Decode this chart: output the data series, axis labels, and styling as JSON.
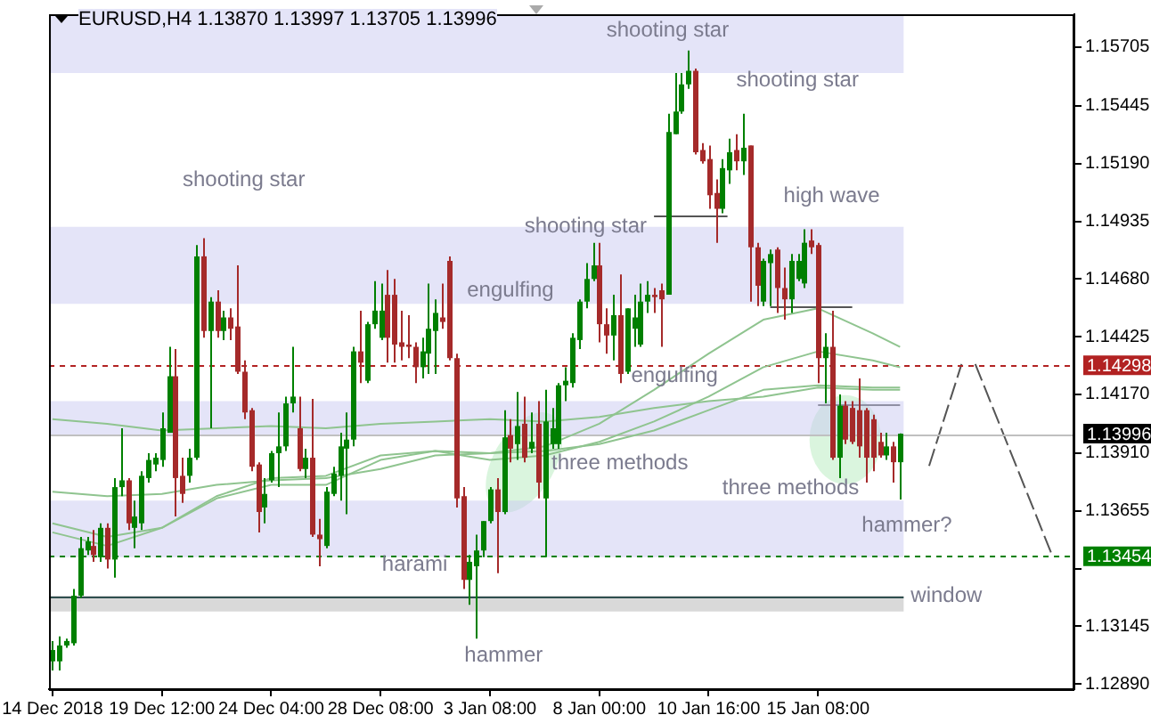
{
  "chart_data": {
    "type": "candlestick",
    "title": "EURUSD,H4 1.13870 1.13997 1.13705 1.13996",
    "categories": [
      "14 Dec 2018",
      null,
      null,
      null,
      null,
      null,
      null,
      null,
      null,
      null,
      null,
      null,
      null,
      null,
      null,
      null,
      "19 Dec 12:00",
      null,
      null,
      null,
      null,
      null,
      null,
      null,
      null,
      null,
      null,
      null,
      null,
      null,
      null,
      null,
      "24 Dec 04:00",
      null,
      null,
      null,
      null,
      null,
      null,
      null,
      null,
      null,
      null,
      null,
      null,
      null,
      null,
      null,
      "28 Dec 08:00",
      null,
      null,
      null,
      null,
      null,
      null,
      null,
      null,
      null,
      null,
      null,
      null,
      null,
      null,
      null,
      "3 Jan 08:00",
      null,
      null,
      null,
      null,
      null,
      null,
      null,
      null,
      null,
      null,
      null,
      null,
      null,
      null,
      null,
      "8 Jan 00:00",
      null,
      null,
      null,
      null,
      null,
      null,
      null,
      null,
      null,
      null,
      null,
      null,
      null,
      null,
      null,
      "10 Jan 16:00",
      null,
      null,
      null,
      null,
      null,
      null,
      null,
      null,
      null,
      null,
      null,
      null,
      null,
      null,
      null,
      "15 Jan 08:00",
      null,
      null,
      null,
      null,
      null,
      null,
      null,
      null,
      null,
      null,
      null,
      null,
      null,
      null,
      null,
      null,
      null,
      null,
      null,
      null,
      null,
      null,
      null,
      null,
      null,
      null,
      null,
      null,
      null,
      null,
      null,
      null,
      null,
      null,
      null,
      null,
      null
    ],
    "ohlc": [
      [
        1.1299,
        1.1308,
        1.1295,
        1.1304
      ],
      [
        1.1299,
        1.131,
        1.1295,
        1.1306
      ],
      [
        1.1306,
        1.1309,
        1.1305,
        1.1308
      ],
      [
        1.1307,
        1.1331,
        1.1306,
        1.1328
      ],
      [
        1.1328,
        1.1354,
        1.1327,
        1.1349
      ],
      [
        1.1348,
        1.1354,
        1.1346,
        1.1352
      ],
      [
        1.135,
        1.1357,
        1.1343,
        1.1346
      ],
      [
        1.1345,
        1.136,
        1.1343,
        1.1358
      ],
      [
        1.1358,
        1.136,
        1.134,
        1.1344
      ],
      [
        1.1344,
        1.138,
        1.1336,
        1.1376
      ],
      [
        1.1376,
        1.1402,
        1.1372,
        1.1379
      ],
      [
        1.1379,
        1.138,
        1.1357,
        1.136
      ],
      [
        1.1358,
        1.137,
        1.1349,
        1.1363
      ],
      [
        1.136,
        1.1383,
        1.1357,
        1.1381
      ],
      [
        1.138,
        1.1391,
        1.1378,
        1.1388
      ],
      [
        1.1386,
        1.1391,
        1.1383,
        1.1389
      ],
      [
        1.1388,
        1.1409,
        1.1385,
        1.1402
      ],
      [
        1.14,
        1.1438,
        1.14,
        1.1425
      ],
      [
        1.1425,
        1.1437,
        1.1363,
        1.138
      ],
      [
        1.1381,
        1.1389,
        1.1369,
        1.1373
      ],
      [
        1.1381,
        1.1393,
        1.1378,
        1.1389
      ],
      [
        1.1389,
        1.1483,
        1.1388,
        1.1478
      ],
      [
        1.1478,
        1.1486,
        1.1442,
        1.1445
      ],
      [
        1.1445,
        1.146,
        1.1402,
        1.1458
      ],
      [
        1.1458,
        1.1463,
        1.1442,
        1.1445
      ],
      [
        1.1445,
        1.1454,
        1.1441,
        1.1451
      ],
      [
        1.1451,
        1.1455,
        1.1441,
        1.1446
      ],
      [
        1.1447,
        1.1474,
        1.1426,
        1.1427
      ],
      [
        1.1427,
        1.1432,
        1.1406,
        1.1409
      ],
      [
        1.141,
        1.1411,
        1.1383,
        1.1385
      ],
      [
        1.1386,
        1.1387,
        1.1356,
        1.1365
      ],
      [
        1.1367,
        1.138,
        1.136,
        1.1373
      ],
      [
        1.1379,
        1.1392,
        1.1378,
        1.1391
      ],
      [
        1.1391,
        1.1409,
        1.1376,
        1.1394
      ],
      [
        1.1394,
        1.1416,
        1.1392,
        1.1413
      ],
      [
        1.1413,
        1.1438,
        1.1409,
        1.1416
      ],
      [
        1.1402,
        1.1416,
        1.1383,
        1.1384
      ],
      [
        1.1384,
        1.1393,
        1.138,
        1.1389
      ],
      [
        1.1389,
        1.1415,
        1.1354,
        1.1355
      ],
      [
        1.1355,
        1.1362,
        1.1341,
        1.1353
      ],
      [
        1.135,
        1.1376,
        1.1349,
        1.1374
      ],
      [
        1.1373,
        1.1385,
        1.1372,
        1.1382
      ],
      [
        1.1381,
        1.14,
        1.137,
        1.1394
      ],
      [
        1.1393,
        1.1409,
        1.1364,
        1.1397
      ],
      [
        1.1397,
        1.1438,
        1.1394,
        1.1436
      ],
      [
        1.1436,
        1.1454,
        1.1422,
        1.1431
      ],
      [
        1.1423,
        1.1449,
        1.1422,
        1.1448
      ],
      [
        1.1448,
        1.1467,
        1.1446,
        1.1454
      ],
      [
        1.1442,
        1.1466,
        1.1441,
        1.1454
      ],
      [
        1.1461,
        1.1472,
        1.1431,
        1.1442
      ],
      [
        1.1461,
        1.1468,
        1.1431,
        1.1439
      ],
      [
        1.144,
        1.1454,
        1.1432,
        1.1438
      ],
      [
        1.1439,
        1.1452,
        1.1433,
        1.1438
      ],
      [
        1.1438,
        1.144,
        1.1422,
        1.1429
      ],
      [
        1.1429,
        1.1442,
        1.1424,
        1.1436
      ],
      [
        1.1435,
        1.1466,
        1.1426,
        1.1446
      ],
      [
        1.1445,
        1.1459,
        1.1426,
        1.1453
      ],
      [
        1.1451,
        1.1466,
        1.1446,
        1.1449
      ],
      [
        1.1476,
        1.1478,
        1.1432,
        1.1433
      ],
      [
        1.1433,
        1.1435,
        1.1367,
        1.1371
      ],
      [
        1.1372,
        1.1376,
        1.1331,
        1.1335
      ],
      [
        1.1335,
        1.1346,
        1.1324,
        1.1343
      ],
      [
        1.1341,
        1.1355,
        1.1309,
        1.1348
      ],
      [
        1.1348,
        1.1361,
        1.1345,
        1.1361
      ],
      [
        1.1361,
        1.1376,
        1.136,
        1.1375
      ],
      [
        1.1375,
        1.138,
        1.1338,
        1.1365
      ],
      [
        1.1365,
        1.141,
        1.1364,
        1.1398
      ],
      [
        1.1399,
        1.1406,
        1.1387,
        1.1393
      ],
      [
        1.1395,
        1.1418,
        1.1388,
        1.1403
      ],
      [
        1.1404,
        1.1416,
        1.1387,
        1.1389
      ],
      [
        1.1393,
        1.1409,
        1.1391,
        1.1396
      ],
      [
        1.1404,
        1.1414,
        1.1371,
        1.1378
      ],
      [
        1.1371,
        1.1419,
        1.1345,
        1.1405
      ],
      [
        1.1395,
        1.1411,
        1.1393,
        1.1402
      ],
      [
        1.1395,
        1.1422,
        1.1393,
        1.1421
      ],
      [
        1.1421,
        1.1429,
        1.1414,
        1.1423
      ],
      [
        1.1422,
        1.1444,
        1.142,
        1.1442
      ],
      [
        1.1441,
        1.1459,
        1.1437,
        1.1458
      ],
      [
        1.1458,
        1.1475,
        1.1455,
        1.1468
      ],
      [
        1.1468,
        1.1484,
        1.1467,
        1.1474
      ],
      [
        1.1474,
        1.1484,
        1.144,
        1.1448
      ],
      [
        1.1448,
        1.1455,
        1.1435,
        1.1443
      ],
      [
        1.1443,
        1.1461,
        1.1432,
        1.1452
      ],
      [
        1.1452,
        1.147,
        1.1422,
        1.1426
      ],
      [
        1.1427,
        1.1455,
        1.1426,
        1.1455
      ],
      [
        1.1446,
        1.1461,
        1.1438,
        1.1451
      ],
      [
        1.1439,
        1.1466,
        1.1438,
        1.1458
      ],
      [
        1.1458,
        1.1467,
        1.1453,
        1.1461
      ],
      [
        1.1461,
        1.1464,
        1.1453,
        1.146
      ],
      [
        1.1463,
        1.1466,
        1.1438,
        1.1459
      ],
      [
        1.1461,
        1.1541,
        1.1461,
        1.1533
      ],
      [
        1.1532,
        1.1559,
        1.1532,
        1.1542
      ],
      [
        1.1542,
        1.1559,
        1.1541,
        1.1554
      ],
      [
        1.1554,
        1.1569,
        1.1552,
        1.156
      ],
      [
        1.156,
        1.1561,
        1.1523,
        1.1524
      ],
      [
        1.1525,
        1.1528,
        1.1519,
        1.152
      ],
      [
        1.1521,
        1.1527,
        1.1499,
        1.1505
      ],
      [
        1.1506,
        1.1512,
        1.1484,
        1.1499
      ],
      [
        1.1499,
        1.1521,
        1.1497,
        1.1517
      ],
      [
        1.1516,
        1.153,
        1.151,
        1.1524
      ],
      [
        1.1525,
        1.1532,
        1.1516,
        1.152
      ],
      [
        1.152,
        1.1541,
        1.1514,
        1.1526
      ],
      [
        1.1527,
        1.1527,
        1.1458,
        1.1482
      ],
      [
        1.1482,
        1.1484,
        1.1456,
        1.1465
      ],
      [
        1.1458,
        1.1477,
        1.1456,
        1.1476
      ],
      [
        1.1475,
        1.1481,
        1.1456,
        1.1479
      ],
      [
        1.1481,
        1.1482,
        1.1453,
        1.1464
      ],
      [
        1.1464,
        1.1473,
        1.145,
        1.1459
      ],
      [
        1.1459,
        1.1479,
        1.1453,
        1.1476
      ],
      [
        1.1468,
        1.1479,
        1.1467,
        1.1476
      ],
      [
        1.1466,
        1.149,
        1.1464,
        1.1484
      ],
      [
        1.1485,
        1.149,
        1.1479,
        1.1482
      ],
      [
        1.1483,
        1.1484,
        1.1422,
        1.1433
      ],
      [
        1.1433,
        1.1444,
        1.1413,
        1.1438
      ],
      [
        1.1438,
        1.1454,
        1.1388,
        1.1389
      ],
      [
        1.1389,
        1.1417,
        1.138,
        1.1412
      ],
      [
        1.1412,
        1.1414,
        1.1395,
        1.1397
      ],
      [
        1.1411,
        1.1414,
        1.1395,
        1.1396
      ],
      [
        1.141,
        1.1424,
        1.1389,
        1.1394
      ],
      [
        1.141,
        1.1411,
        1.1378,
        1.1389
      ],
      [
        1.1406,
        1.1408,
        1.1383,
        1.1389
      ],
      [
        1.1396,
        1.14,
        1.1389,
        1.139
      ],
      [
        1.139,
        1.14,
        1.1388,
        1.1394
      ],
      [
        1.1394,
        1.1396,
        1.1378,
        1.1387
      ],
      [
        1.1387,
        1.13997,
        1.13705,
        1.13996
      ],
      null,
      null,
      null,
      null,
      null,
      null,
      null,
      null,
      null,
      null,
      null,
      null,
      null,
      null,
      null,
      null,
      null,
      null,
      null,
      null,
      null,
      null,
      null,
      null,
      null
    ],
    "series": [
      {
        "type": "line",
        "color": "#8fc48f",
        "values": [
          1.1374,
          null,
          null,
          null,
          null,
          null,
          null,
          null,
          1.1372,
          null,
          null,
          null,
          null,
          null,
          null,
          null,
          1.1373,
          null,
          null,
          null,
          null,
          null,
          null,
          null,
          1.1377,
          null,
          null,
          null,
          null,
          null,
          null,
          null,
          1.1379,
          null,
          null,
          null,
          null,
          null,
          null,
          null,
          1.138,
          null,
          null,
          null,
          null,
          null,
          null,
          null,
          1.1384,
          null,
          null,
          null,
          null,
          null,
          null,
          null,
          1.139,
          null,
          null,
          null,
          null,
          null,
          null,
          null,
          1.1391,
          null,
          null,
          null,
          null,
          null,
          null,
          null,
          1.1394,
          null,
          null,
          null,
          null,
          null,
          null,
          null,
          1.1404,
          null,
          null,
          null,
          null,
          null,
          null,
          null,
          1.1419,
          null,
          null,
          null,
          null,
          null,
          null,
          null,
          1.1435,
          null,
          null,
          null,
          null,
          null,
          null,
          null,
          1.145,
          null,
          null,
          null,
          null,
          null,
          null,
          null,
          1.1455,
          null,
          null,
          null,
          null,
          null,
          null,
          null,
          1.1444,
          null,
          null,
          null,
          1.1438,
          null,
          null,
          null,
          null,
          null,
          null,
          null,
          null,
          null,
          null,
          null,
          null,
          null,
          null,
          null,
          null,
          null,
          null,
          null,
          null,
          null,
          null,
          null,
          null,
          null
        ]
      },
      {
        "type": "line",
        "color": "#8fc48f",
        "values": [
          1.136,
          null,
          null,
          null,
          null,
          null,
          null,
          null,
          1.1354,
          null,
          null,
          null,
          null,
          null,
          null,
          null,
          1.1358,
          null,
          null,
          null,
          null,
          null,
          null,
          null,
          1.1372,
          null,
          null,
          null,
          null,
          null,
          null,
          null,
          1.138,
          null,
          null,
          null,
          null,
          null,
          null,
          null,
          1.1381,
          null,
          null,
          null,
          null,
          null,
          null,
          null,
          1.139,
          null,
          null,
          null,
          null,
          null,
          null,
          null,
          1.1392,
          null,
          null,
          null,
          null,
          null,
          null,
          null,
          1.1388,
          null,
          null,
          null,
          null,
          null,
          null,
          null,
          1.139,
          null,
          null,
          null,
          null,
          null,
          null,
          null,
          1.1396,
          null,
          null,
          null,
          null,
          null,
          null,
          null,
          1.1405,
          null,
          null,
          null,
          null,
          null,
          null,
          null,
          1.1416,
          null,
          null,
          null,
          null,
          null,
          null,
          null,
          1.1429,
          null,
          null,
          null,
          null,
          null,
          null,
          null,
          1.1436,
          null,
          null,
          null,
          null,
          null,
          null,
          null,
          1.1432,
          null,
          null,
          null,
          1.1429,
          null,
          null,
          null,
          null,
          null,
          null,
          null,
          null,
          null,
          null,
          null,
          null,
          null,
          null,
          null,
          null,
          null,
          null,
          null,
          null,
          null,
          null,
          null,
          null,
          null
        ]
      },
      {
        "type": "line",
        "color": "#8fc48f",
        "values": [
          1.1356,
          null,
          null,
          null,
          null,
          null,
          null,
          null,
          1.135,
          null,
          null,
          null,
          null,
          null,
          null,
          null,
          1.1358,
          null,
          null,
          null,
          null,
          null,
          null,
          null,
          1.1371,
          null,
          null,
          null,
          null,
          null,
          null,
          null,
          1.1377,
          null,
          null,
          null,
          null,
          null,
          null,
          null,
          1.1377,
          null,
          null,
          null,
          null,
          null,
          null,
          null,
          1.1388,
          null,
          null,
          null,
          null,
          null,
          null,
          null,
          1.1392,
          null,
          null,
          null,
          null,
          null,
          null,
          null,
          1.1391,
          null,
          null,
          null,
          null,
          null,
          null,
          null,
          1.1392,
          null,
          null,
          null,
          null,
          null,
          null,
          null,
          1.1395,
          null,
          null,
          null,
          null,
          null,
          null,
          null,
          1.1401,
          null,
          null,
          null,
          null,
          null,
          null,
          null,
          1.141,
          null,
          null,
          null,
          null,
          null,
          null,
          null,
          1.1419,
          null,
          null,
          null,
          null,
          null,
          null,
          null,
          1.1421,
          null,
          null,
          null,
          null,
          null,
          null,
          null,
          1.142,
          null,
          null,
          null,
          1.142,
          null,
          null,
          null,
          null,
          null,
          null,
          null,
          null,
          null,
          null,
          null,
          null,
          null,
          null,
          null,
          null,
          null,
          null,
          null,
          null,
          null,
          null,
          null,
          null,
          null
        ]
      },
      {
        "type": "line",
        "color": "#8fc48f",
        "values": [
          1.1406,
          null,
          null,
          null,
          null,
          null,
          null,
          null,
          1.1404,
          null,
          null,
          null,
          null,
          null,
          null,
          null,
          1.1401,
          null,
          null,
          null,
          null,
          null,
          null,
          null,
          1.1402,
          null,
          null,
          null,
          null,
          null,
          null,
          null,
          1.1403,
          null,
          null,
          null,
          null,
          null,
          null,
          null,
          1.1402,
          null,
          null,
          null,
          null,
          null,
          null,
          null,
          1.1404,
          null,
          null,
          null,
          null,
          null,
          null,
          null,
          1.1405,
          null,
          null,
          null,
          null,
          null,
          null,
          null,
          1.1406,
          null,
          null,
          null,
          null,
          null,
          null,
          null,
          1.1405,
          null,
          null,
          null,
          null,
          null,
          null,
          null,
          1.1407,
          null,
          null,
          null,
          null,
          null,
          null,
          null,
          1.1411,
          null,
          null,
          null,
          null,
          null,
          null,
          null,
          1.1414,
          null,
          null,
          null,
          null,
          null,
          null,
          null,
          1.1416,
          null,
          null,
          null,
          null,
          null,
          null,
          null,
          1.142,
          null,
          null,
          null,
          null,
          null,
          null,
          null,
          1.1419,
          null,
          null,
          null,
          1.1419,
          null,
          null,
          null,
          null,
          null,
          null,
          null,
          null,
          null,
          null,
          null,
          null,
          null,
          null,
          null,
          null,
          null,
          null,
          null,
          null,
          null,
          null,
          null,
          null,
          null
        ]
      }
    ],
    "ylim": [
      1.12867,
      1.1585
    ],
    "yticks": [
      1.15705,
      1.15445,
      {
        "value": 1.1519,
        "label": "1.15190"
      },
      1.14935,
      {
        "value": 1.1468,
        "label": "1.14680"
      },
      1.14425,
      {
        "value": 1.1417,
        "label": "1.14170"
      },
      {
        "value": 1.1391,
        "label": "1.13910"
      },
      1.13655,
      {
        "value": 1.134,
        "label": null
      },
      1.13145,
      {
        "value": 1.1289,
        "label": "1.12890"
      }
    ],
    "bands": [
      {
        "axis": "y",
        "from": 1.1559,
        "to": 1.1585,
        "color": "#e4e4f8"
      },
      {
        "axis": "y",
        "from": 1.1457,
        "to": 1.1491,
        "color": "#e4e4f8"
      },
      {
        "axis": "y",
        "from": 1.1399,
        "to": 1.1414,
        "color": "#e4e4f8"
      },
      {
        "axis": "y",
        "from": 1.1345,
        "to": 1.137,
        "color": "#e4e4f8"
      },
      {
        "axis": "y",
        "from": 1.1321,
        "to": 1.1328,
        "color": "#d9d9d9",
        "label": "window"
      }
    ],
    "ref_lines": [
      {
        "axis": "y",
        "value": 1.14298,
        "label": "1.14298",
        "color": "#b22222",
        "line_style": "dashed"
      },
      {
        "axis": "y",
        "value": 1.13996,
        "label": "1.13996",
        "color": "#c0c0c0",
        "line_style": "solid"
      },
      {
        "axis": "y",
        "value": 1.13454,
        "label": "1.13454",
        "color": "#008000",
        "line_style": "dashed"
      },
      {
        "axis": "y",
        "value": 1.13278,
        "color": "#2f4f4f",
        "line_style": "solid"
      }
    ],
    "annotations": [
      "shooting star",
      "shooting star",
      "shooting star",
      "high wave",
      "shooting star",
      "engulfing",
      "engulfing",
      "three methods",
      "three methods",
      "hammer?",
      "harami",
      "hammer"
    ]
  }
}
